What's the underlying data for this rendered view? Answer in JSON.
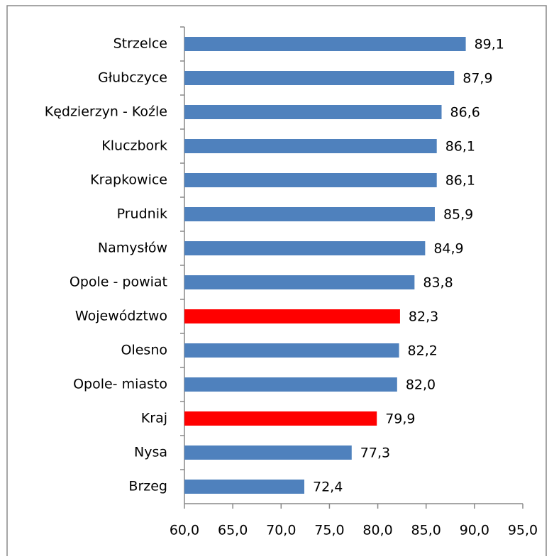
{
  "chart_data": {
    "type": "bar",
    "orientation": "horizontal",
    "categories": [
      "Strzelce",
      "Głubczyce",
      "Kędzierzyn - Koźle",
      "Kluczbork",
      "Krapkowice",
      "Prudnik",
      "Namysłów",
      "Opole - powiat",
      "Województwo",
      "Olesno",
      "Opole- miasto",
      "Kraj",
      "Nysa",
      "Brzeg"
    ],
    "values": [
      89.1,
      87.9,
      86.6,
      86.1,
      86.1,
      85.9,
      84.9,
      83.8,
      82.3,
      82.2,
      82.0,
      79.9,
      77.3,
      72.4
    ],
    "value_labels": [
      "89,1",
      "87,9",
      "86,6",
      "86,1",
      "86,1",
      "85,9",
      "84,9",
      "83,8",
      "82,3",
      "82,2",
      "82,0",
      "79,9",
      "77,3",
      "72,4"
    ],
    "colors": [
      "#4f81bd",
      "#4f81bd",
      "#4f81bd",
      "#4f81bd",
      "#4f81bd",
      "#4f81bd",
      "#4f81bd",
      "#4f81bd",
      "#ff0000",
      "#4f81bd",
      "#4f81bd",
      "#ff0000",
      "#4f81bd",
      "#4f81bd"
    ],
    "xlim": [
      60,
      95
    ],
    "xticks": [
      {
        "value": 60,
        "label": "60,0"
      },
      {
        "value": 65,
        "label": "65,0"
      },
      {
        "value": 70,
        "label": "70,0"
      },
      {
        "value": 75,
        "label": "75,0"
      },
      {
        "value": 80,
        "label": "80,0"
      },
      {
        "value": 85,
        "label": "85,0"
      },
      {
        "value": 90,
        "label": "90,0"
      },
      {
        "value": 95,
        "label": "95,0"
      }
    ],
    "grid": false
  }
}
